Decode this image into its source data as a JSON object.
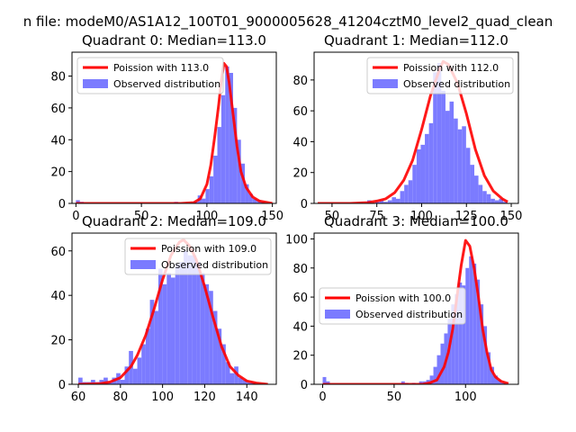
{
  "figure": {
    "suptitle": "n file: modeM0/AS1A12_100T01_9000005628_41204cztM0_level2_quad_clean"
  },
  "colors": {
    "poisson": "#ff0000",
    "observed": "#7b7bff",
    "axis": "#000000",
    "background": "#ffffff"
  },
  "chart_data": [
    {
      "type": "bar",
      "title": "Quadrant 0: Median=113.0",
      "xlabel": "",
      "ylabel": "",
      "xlim": [
        -3,
        153
      ],
      "ylim": [
        0,
        95
      ],
      "xticks": [
        0,
        50,
        100,
        150
      ],
      "yticks": [
        0,
        20,
        40,
        60,
        80
      ],
      "grid": false,
      "legend_position": "top-left",
      "series": [
        {
          "name": "Poission with 113.0",
          "type": "line",
          "mean": 113.0,
          "x": [
            0,
            80,
            90,
            95,
            100,
            103,
            106,
            109,
            111,
            113,
            115,
            117,
            120,
            123,
            126,
            130,
            135,
            140,
            150
          ],
          "y": [
            0,
            0,
            0.5,
            3,
            12,
            24,
            42,
            62,
            77,
            88,
            86,
            76,
            56,
            36,
            20,
            10,
            4,
            1.5,
            0
          ]
        },
        {
          "name": "Observed distribution",
          "type": "bar",
          "bin_width": 3,
          "x": [
            0,
            3,
            6,
            9,
            12,
            15,
            18,
            21,
            24,
            27,
            30,
            33,
            36,
            39,
            42,
            45,
            48,
            51,
            54,
            57,
            60,
            63,
            66,
            69,
            72,
            75,
            78,
            81,
            84,
            87,
            90,
            93,
            96,
            99,
            102,
            105,
            108,
            111,
            114,
            117,
            120,
            123,
            126,
            129,
            132,
            135,
            138,
            141,
            144,
            147
          ],
          "values": [
            2,
            1,
            0,
            0,
            0,
            0,
            0,
            0,
            0,
            0,
            0,
            0,
            0,
            0,
            0,
            0,
            0,
            0,
            0,
            0,
            0,
            0,
            0,
            0,
            0,
            1,
            0,
            0,
            0,
            0,
            1,
            5,
            3,
            9,
            17,
            30,
            48,
            68,
            86,
            82,
            60,
            40,
            25,
            12,
            6,
            3,
            2,
            1,
            0,
            0
          ]
        }
      ]
    },
    {
      "type": "bar",
      "title": "Quadrant 1: Median=112.0",
      "xlabel": "",
      "ylabel": "",
      "xlim": [
        40,
        154
      ],
      "ylim": [
        0,
        98
      ],
      "xticks": [
        50,
        75,
        100,
        125,
        150
      ],
      "yticks": [
        0,
        20,
        40,
        60,
        80
      ],
      "grid": false,
      "legend_position": "top-right",
      "series": [
        {
          "name": "Poission with 112.0",
          "type": "line",
          "mean": 112.0,
          "x": [
            42,
            60,
            70,
            75,
            80,
            85,
            90,
            95,
            100,
            105,
            110,
            112,
            115,
            120,
            125,
            130,
            135,
            140,
            145,
            148
          ],
          "y": [
            0,
            0,
            0.5,
            1.5,
            3,
            7,
            15,
            28,
            48,
            70,
            87,
            92,
            90,
            78,
            58,
            35,
            18,
            8,
            3,
            1
          ]
        },
        {
          "name": "Observed distribution",
          "type": "bar",
          "bin_width": 2.3,
          "x": [
            42,
            44.3,
            46.6,
            48.9,
            51.2,
            53.5,
            55.8,
            58.1,
            60.4,
            62.7,
            65,
            67.3,
            69.6,
            71.9,
            74.2,
            76.5,
            78.8,
            81.1,
            83.4,
            85.7,
            88,
            90.3,
            92.6,
            94.9,
            97.2,
            99.5,
            101.8,
            104.1,
            106.4,
            108.7,
            111,
            113.3,
            115.6,
            117.9,
            120.2,
            122.5,
            124.8,
            127.1,
            129.4,
            131.7,
            134,
            136.3,
            138.6,
            140.9,
            143.2,
            145.5
          ],
          "values": [
            0,
            0,
            0,
            0,
            0,
            0,
            0,
            0,
            0,
            0,
            1,
            0,
            2,
            0,
            1,
            2,
            1,
            2,
            4,
            3,
            8,
            12,
            15,
            25,
            35,
            38,
            45,
            52,
            85,
            91,
            73,
            60,
            66,
            55,
            48,
            50,
            36,
            25,
            18,
            12,
            8,
            6,
            3,
            2,
            3,
            1
          ]
        }
      ]
    },
    {
      "type": "bar",
      "title": "Quadrant 2: Median=109.0",
      "xlabel": "",
      "ylabel": "",
      "xlim": [
        57,
        154
      ],
      "ylim": [
        0,
        68
      ],
      "xticks": [
        60,
        80,
        100,
        120,
        140
      ],
      "yticks": [
        0,
        20,
        40,
        60
      ],
      "grid": false,
      "legend_position": "top-right",
      "series": [
        {
          "name": "Poission with 109.0",
          "type": "line",
          "mean": 109.0,
          "x": [
            60,
            70,
            75,
            80,
            85,
            88,
            92,
            96,
            100,
            104,
            108,
            110,
            113,
            116,
            120,
            124,
            128,
            132,
            136,
            140,
            145,
            150
          ],
          "y": [
            0,
            0.3,
            1,
            3,
            8,
            13,
            22,
            34,
            47,
            58,
            64,
            65,
            62,
            56,
            44,
            30,
            17,
            8,
            4,
            1.5,
            0.5,
            0
          ]
        },
        {
          "name": "Observed distribution",
          "type": "bar",
          "bin_width": 2,
          "x": [
            60,
            62,
            64,
            66,
            68,
            70,
            72,
            74,
            76,
            78,
            80,
            82,
            84,
            86,
            88,
            90,
            92,
            94,
            96,
            98,
            100,
            102,
            104,
            106,
            108,
            110,
            112,
            114,
            116,
            118,
            120,
            122,
            124,
            126,
            128,
            130,
            132,
            134,
            136,
            138,
            140,
            142
          ],
          "values": [
            3,
            1,
            1,
            2,
            1,
            2,
            3,
            1,
            3,
            5,
            2,
            8,
            15,
            7,
            12,
            18,
            25,
            38,
            33,
            52,
            45,
            50,
            48,
            54,
            55,
            60,
            58,
            58,
            55,
            50,
            45,
            42,
            33,
            25,
            18,
            10,
            5,
            8,
            3,
            2,
            1,
            1
          ]
        }
      ]
    },
    {
      "type": "bar",
      "title": "Quadrant 3: Median=100.0",
      "xlabel": "",
      "ylabel": "",
      "xlim": [
        -6,
        137
      ],
      "ylim": [
        0,
        104
      ],
      "xticks": [
        0,
        50,
        100
      ],
      "yticks": [
        0,
        20,
        40,
        60,
        80,
        100
      ],
      "grid": false,
      "legend_position": "center-left",
      "series": [
        {
          "name": "Poission with 100.0",
          "type": "line",
          "mean": 100.0,
          "x": [
            0,
            70,
            75,
            80,
            85,
            88,
            91,
            94,
            97,
            100,
            103,
            106,
            109,
            112,
            115,
            118,
            121,
            125,
            130
          ],
          "y": [
            0,
            0,
            1,
            3,
            12,
            22,
            38,
            60,
            82,
            99,
            95,
            80,
            60,
            38,
            22,
            10,
            5,
            2,
            0.5
          ]
        },
        {
          "name": "Observed distribution",
          "type": "bar",
          "bin_width": 2.5,
          "x": [
            0,
            2.5,
            5,
            7.5,
            10,
            12.5,
            15,
            17.5,
            20,
            22.5,
            25,
            27.5,
            30,
            32.5,
            35,
            37.5,
            40,
            42.5,
            45,
            47.5,
            50,
            52.5,
            55,
            57.5,
            60,
            62.5,
            65,
            67.5,
            70,
            72.5,
            75,
            77.5,
            80,
            82.5,
            85,
            87.5,
            90,
            92.5,
            95,
            97.5,
            100,
            102.5,
            105,
            107.5,
            110,
            112.5,
            115,
            117.5,
            120,
            122.5,
            125
          ],
          "values": [
            5,
            2,
            0,
            0,
            0,
            0,
            0,
            0,
            0,
            0,
            0,
            0,
            0,
            0,
            0,
            0,
            0,
            0,
            0,
            0,
            0,
            0,
            2,
            1,
            0,
            1,
            0,
            2,
            2,
            3,
            6,
            12,
            20,
            28,
            35,
            45,
            55,
            62,
            70,
            68,
            80,
            88,
            83,
            72,
            55,
            40,
            22,
            12,
            6,
            3,
            1
          ]
        }
      ]
    }
  ]
}
